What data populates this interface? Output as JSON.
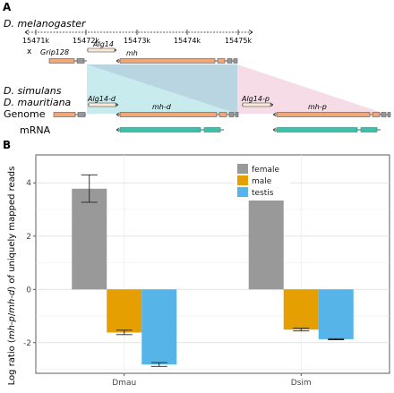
{
  "panel_a": {
    "label": "A",
    "species_top": "D. melanogaster",
    "species_mid_1": "D. simulans",
    "species_mid_2": "D. mauritiana",
    "scale_ticks": [
      "15471k",
      "15472k",
      "15473k",
      "15474k",
      "15475k"
    ],
    "x_mark": "x",
    "genes_top": {
      "grip": "Grip128",
      "alg": "Alg14",
      "mh": "mh"
    },
    "genes_bottom": {
      "alg_d": "Alg14-d",
      "mh_d": "mh-d",
      "alg_p": "Alg14-p",
      "mh_p": "mh-p"
    },
    "row_genome": "Genome",
    "row_mrna": "mRNA",
    "colors": {
      "exon": "#f0a878",
      "mrna": "#3fbfa8",
      "shade_cyan": "#c8ecee",
      "shade_pink": "#f6dce6"
    }
  },
  "panel_b": {
    "label": "B"
  },
  "chart_data": {
    "type": "bar",
    "categories": [
      "Dmau",
      "Dsim"
    ],
    "series": [
      {
        "name": "female",
        "color": "#999999",
        "values": [
          3.78,
          4.16
        ],
        "err_low": [
          3.27,
          3.93
        ],
        "err_high": [
          4.3,
          4.4
        ]
      },
      {
        "name": "male",
        "color": "#e69f00",
        "values": [
          -1.62,
          -1.51
        ],
        "err_low": [
          -1.7,
          -1.56
        ],
        "err_high": [
          -1.53,
          -1.46
        ]
      },
      {
        "name": "testis",
        "color": "#56b4e9",
        "values": [
          -2.82,
          -1.87
        ],
        "err_low": [
          -2.89,
          -1.89
        ],
        "err_high": [
          -2.75,
          -1.85
        ]
      }
    ],
    "ylabel_parts": [
      "Log ratio (",
      "mh-p",
      "/",
      "mh-d",
      ") of uniquely mapped reads"
    ],
    "yticks": [
      4,
      2,
      0,
      -2
    ],
    "ylim": [
      -3.15,
      5.05
    ],
    "grid": true,
    "legend_position": "top-right"
  }
}
